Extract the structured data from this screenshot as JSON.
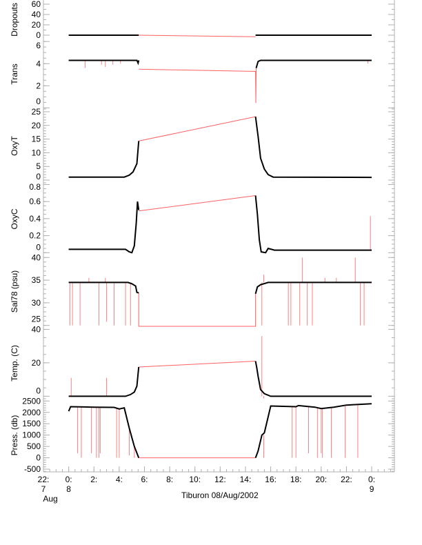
{
  "chart_data": {
    "type": "line",
    "title": "Tiburon 08/Aug/2002",
    "xlabel": "Tiburon 08/Aug/2002",
    "xlim": [
      -2,
      25.8
    ],
    "xticks": [
      {
        "value": -2,
        "label": "22:",
        "sub1": "7",
        "sub2": "Aug"
      },
      {
        "value": 0,
        "label": "0:",
        "sub1": "8",
        "sub2": ""
      },
      {
        "value": 2,
        "label": "2:"
      },
      {
        "value": 4,
        "label": "4:"
      },
      {
        "value": 6,
        "label": "6:"
      },
      {
        "value": 8,
        "label": "8:"
      },
      {
        "value": 10,
        "label": "10:"
      },
      {
        "value": 12,
        "label": "12:"
      },
      {
        "value": 14,
        "label": "14:"
      },
      {
        "value": 16,
        "label": "16:"
      },
      {
        "value": 18,
        "label": "18:"
      },
      {
        "value": 20,
        "label": "20:"
      },
      {
        "value": 22,
        "label": "22:"
      },
      {
        "value": 24,
        "label": "0:",
        "sub1": "9",
        "sub2": ""
      }
    ],
    "colors": {
      "data": "#000000",
      "gap": "#ff6060",
      "spike": "#ff8080",
      "axis": "#b0b0b0"
    },
    "panels": [
      {
        "name": "Dropouts",
        "ylabel": "Dropouts",
        "ylim": [
          -8,
          68
        ],
        "yticks": [
          0,
          20,
          40,
          60
        ],
        "minor": 10,
        "black": [
          [
            0,
            0
          ],
          [
            5.55,
            0
          ]
        ],
        "black2": [
          [
            14.8,
            0
          ],
          [
            24,
            0
          ]
        ],
        "red": [
          [
            5.55,
            0
          ],
          [
            14.8,
            -3
          ]
        ],
        "spikes": []
      },
      {
        "name": "Trans",
        "ylabel": "Trans",
        "ylim": [
          -0.1,
          6.2
        ],
        "yticks": [
          0,
          2,
          4,
          6
        ],
        "minor": 0.5,
        "black": [
          [
            0,
            4.3
          ],
          [
            5.4,
            4.3
          ],
          [
            5.5,
            4.05
          ],
          [
            5.55,
            4.3
          ]
        ],
        "black2": [
          [
            14.85,
            3.6
          ],
          [
            15,
            4.2
          ],
          [
            15.2,
            4.3
          ],
          [
            24,
            4.3
          ]
        ],
        "red": [
          [
            5.55,
            3.5
          ],
          [
            14.8,
            3.3
          ],
          [
            14.82,
            0.45
          ],
          [
            14.85,
            3.6
          ]
        ],
        "spikes": [
          [
            1.3,
            4.3,
            3.6
          ],
          [
            2.6,
            4.3,
            3.9
          ],
          [
            2.9,
            4.3,
            3.7
          ],
          [
            3.5,
            4.3,
            3.9
          ],
          [
            4.1,
            4.3,
            4.0
          ],
          [
            23.7,
            4.3,
            4.0
          ]
        ]
      },
      {
        "name": "OxyT",
        "ylabel": "OxyT",
        "ylim": [
          -1,
          26
        ],
        "yticks": [
          0,
          5,
          10,
          15,
          20,
          25
        ],
        "minor": 1,
        "black": [
          [
            0,
            1.1
          ],
          [
            4.4,
            1.1
          ],
          [
            4.8,
            1.8
          ],
          [
            5.1,
            3
          ],
          [
            5.4,
            6
          ],
          [
            5.55,
            14.3
          ]
        ],
        "black2": [
          [
            14.8,
            23.2
          ],
          [
            15.0,
            16
          ],
          [
            15.2,
            8
          ],
          [
            15.5,
            4
          ],
          [
            15.8,
            2
          ],
          [
            16.2,
            1.1
          ],
          [
            24,
            1.0
          ]
        ],
        "red": [
          [
            5.55,
            14.3
          ],
          [
            14.8,
            23.2
          ]
        ],
        "spikes": []
      },
      {
        "name": "OxyC",
        "ylabel": "OxyC",
        "ylim": [
          -0.03,
          0.82
        ],
        "yticks": [
          0.0,
          0.2,
          0.4,
          0.6,
          0.8
        ],
        "minor": 0.05,
        "black": [
          [
            0,
            0.04
          ],
          [
            4.5,
            0.04
          ],
          [
            4.8,
            0.01
          ],
          [
            5.0,
            0.0
          ],
          [
            5.2,
            0.08
          ],
          [
            5.35,
            0.35
          ],
          [
            5.45,
            0.6
          ],
          [
            5.55,
            0.5
          ]
        ],
        "black2": [
          [
            14.8,
            0.67
          ],
          [
            14.95,
            0.45
          ],
          [
            15.1,
            0.15
          ],
          [
            15.25,
            0.01
          ],
          [
            15.6,
            0.0
          ],
          [
            15.8,
            0.05
          ],
          [
            16.3,
            0.03
          ],
          [
            24,
            0.03
          ]
        ],
        "red": [
          [
            5.55,
            0.49
          ],
          [
            14.8,
            0.67
          ]
        ],
        "spikes": [
          [
            23.9,
            0.03,
            0.43
          ]
        ]
      },
      {
        "name": "Sal78",
        "ylabel": "Sal78 (psu)",
        "ylim": [
          24.5,
          40.5
        ],
        "yticks": [
          25,
          30,
          35,
          40
        ],
        "minor": 1,
        "black": [
          [
            0,
            34.5
          ],
          [
            4.7,
            34.5
          ],
          [
            5.0,
            34.2
          ],
          [
            5.3,
            33.7
          ],
          [
            5.4,
            32.3
          ],
          [
            5.55,
            32.2
          ]
        ],
        "black2": [
          [
            14.8,
            32.0
          ],
          [
            14.95,
            33.5
          ],
          [
            15.2,
            34.0
          ],
          [
            15.8,
            34.5
          ],
          [
            24,
            34.5
          ]
        ],
        "red": [
          [
            5.55,
            32.2
          ],
          [
            5.55,
            24.8
          ],
          [
            14.8,
            24.8
          ],
          [
            14.8,
            32.0
          ]
        ],
        "spikes": [
          [
            0.1,
            34.5,
            25
          ],
          [
            0.3,
            34.5,
            25
          ],
          [
            0.9,
            34.5,
            25
          ],
          [
            1.6,
            34.5,
            35.5
          ],
          [
            2.4,
            34.5,
            25
          ],
          [
            2.9,
            34.5,
            35.5
          ],
          [
            3.0,
            34.5,
            25.8
          ],
          [
            3.6,
            34.5,
            25
          ],
          [
            4.5,
            34.5,
            25
          ],
          [
            4.9,
            34.5,
            25
          ],
          [
            15.3,
            34.5,
            25
          ],
          [
            15.45,
            34.5,
            36.2
          ],
          [
            17.4,
            34.5,
            25
          ],
          [
            17.6,
            34.5,
            25
          ],
          [
            18.3,
            34.5,
            25
          ],
          [
            18.5,
            34.5,
            40
          ],
          [
            18.9,
            34.5,
            25
          ],
          [
            19.3,
            34.5,
            25
          ],
          [
            20.3,
            34.5,
            35.5
          ],
          [
            21.2,
            34.5,
            35.5
          ],
          [
            22.7,
            34.5,
            40
          ],
          [
            23.1,
            34.5,
            25
          ],
          [
            23.4,
            34.5,
            25
          ]
        ]
      },
      {
        "name": "Temp",
        "ylabel": "Temp. (C)",
        "ylim": [
          -1.5,
          41
        ],
        "yticks": [
          0,
          20,
          40
        ],
        "minor": 5,
        "black": [
          [
            0,
            0
          ],
          [
            4.5,
            0
          ],
          [
            4.9,
            1
          ],
          [
            5.2,
            2.5
          ],
          [
            5.4,
            6
          ],
          [
            5.55,
            17.5
          ]
        ],
        "black2": [
          [
            14.8,
            21
          ],
          [
            14.9,
            17
          ],
          [
            15.0,
            12
          ],
          [
            15.2,
            4
          ],
          [
            15.5,
            1.5
          ],
          [
            16,
            0
          ],
          [
            24,
            0
          ]
        ],
        "red": [
          [
            5.55,
            17.5
          ],
          [
            14.8,
            21
          ]
        ],
        "spikes": [
          [
            0.2,
            0,
            11
          ],
          [
            3.0,
            0,
            11
          ],
          [
            15.3,
            0,
            36
          ],
          [
            15.45,
            0,
            -1.2
          ]
        ]
      },
      {
        "name": "Press",
        "ylabel": "Press. (db)",
        "ylim": [
          -620,
          2600
        ],
        "yticks": [
          -500,
          0,
          500,
          1000,
          1500,
          2000,
          2500
        ],
        "minor": 100,
        "black": [
          [
            0,
            2050
          ],
          [
            0.15,
            2250
          ],
          [
            2,
            2230
          ],
          [
            3.6,
            2220
          ],
          [
            4,
            2150
          ],
          [
            4.4,
            2200
          ],
          [
            4.8,
            1300
          ],
          [
            5.2,
            500
          ],
          [
            5.55,
            0
          ]
        ],
        "black2": [
          [
            14.8,
            0
          ],
          [
            15.0,
            300
          ],
          [
            15.3,
            1000
          ],
          [
            15.5,
            1100
          ],
          [
            16,
            2280
          ],
          [
            18,
            2250
          ],
          [
            18.2,
            2300
          ],
          [
            19.5,
            2230
          ],
          [
            20,
            2170
          ],
          [
            21,
            2230
          ],
          [
            22,
            2320
          ],
          [
            24,
            2380
          ]
        ],
        "red": [
          [
            5.55,
            0
          ],
          [
            14.8,
            0
          ]
        ],
        "spikes": [
          [
            0.7,
            2250,
            200
          ],
          [
            1.0,
            2250,
            0
          ],
          [
            1.8,
            2240,
            200
          ],
          [
            2.2,
            2230,
            0
          ],
          [
            2.4,
            2230,
            0
          ],
          [
            2.5,
            2230,
            200
          ],
          [
            3.8,
            2200,
            0
          ],
          [
            4.0,
            2170,
            0
          ],
          [
            4.8,
            1300,
            100
          ],
          [
            5.2,
            500,
            0
          ],
          [
            15.45,
            1000,
            0
          ],
          [
            17.7,
            2250,
            0
          ],
          [
            18.0,
            2280,
            0
          ],
          [
            19.0,
            2250,
            200
          ],
          [
            19.7,
            2180,
            0
          ],
          [
            20.0,
            2170,
            200
          ],
          [
            20.1,
            2170,
            0
          ],
          [
            20.8,
            2220,
            0
          ],
          [
            21.9,
            2300,
            0
          ],
          [
            22.9,
            2320,
            0
          ]
        ]
      }
    ]
  }
}
